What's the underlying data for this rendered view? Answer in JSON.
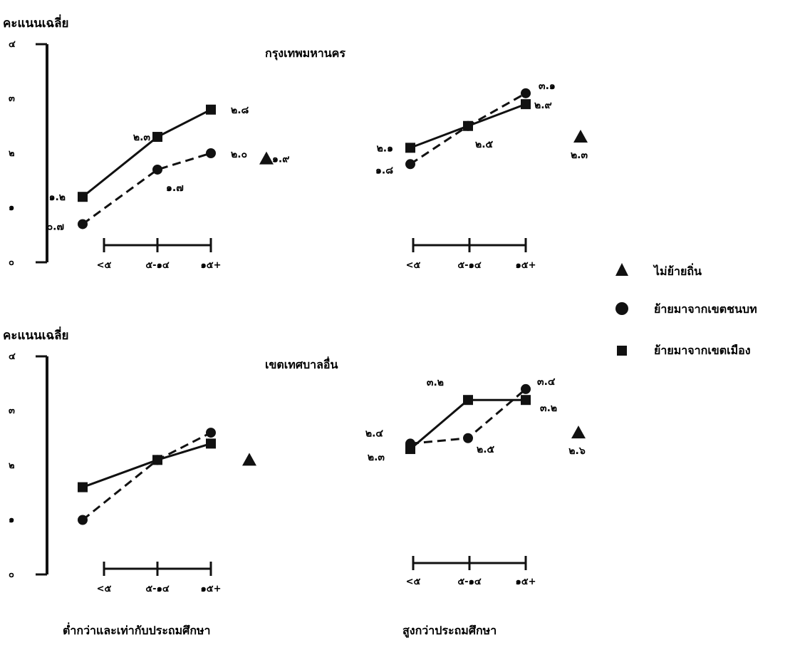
{
  "chart_data": {
    "type": "line",
    "ylabel": "คะแนนเฉลี่ย",
    "y_ticks": [
      "๐",
      "๑",
      "๒",
      "๓",
      "๔"
    ],
    "ylim": [
      0,
      4
    ],
    "categories": [
      "<๕",
      "๕-๑๔",
      "๑๕+"
    ],
    "row_titles": [
      "กรุงเทพมหานคร",
      "เขตเทศบาลอื่น"
    ],
    "column_titles": [
      "ต่ำกว่าและเท่ากับประถมศึกษา",
      "สูงกว่าประถมศึกษา"
    ],
    "legend": [
      {
        "name": "ไม่ย้ายถิ่น",
        "marker": "triangle"
      },
      {
        "name": "ย้ายมาจากเขตชนบท",
        "marker": "circle",
        "line": "dashed"
      },
      {
        "name": "ย้ายมาจากเขตเมือง",
        "marker": "square",
        "line": "solid"
      }
    ],
    "panels": [
      {
        "row": "กรุงเทพมหานคร",
        "column": "ต่ำกว่าและเท่ากับประถมศึกษา",
        "series": [
          {
            "marker": "square",
            "values": [
              1.2,
              2.3,
              2.8
            ],
            "labels": [
              "๑.๒",
              "๒.๓",
              "๒.๘"
            ]
          },
          {
            "marker": "circle",
            "values": [
              0.7,
              1.7,
              2.0
            ],
            "labels": [
              "๐.๗",
              "๑.๗",
              "๒.๐"
            ]
          }
        ],
        "nonmigrant": {
          "value": 1.9,
          "label": "๑.๙"
        }
      },
      {
        "row": "กรุงเทพมหานคร",
        "column": "สูงกว่าประถมศึกษา",
        "series": [
          {
            "marker": "square",
            "values": [
              2.1,
              2.5,
              2.9
            ],
            "labels": [
              "๒.๑",
              "",
              "๒.๙"
            ]
          },
          {
            "marker": "circle",
            "values": [
              1.8,
              2.5,
              3.1
            ],
            "labels": [
              "๑.๘",
              "๒.๕",
              "๓.๑"
            ]
          }
        ],
        "nonmigrant": {
          "value": 2.3,
          "label": "๒.๓"
        }
      },
      {
        "row": "เขตเทศบาลอื่น",
        "column": "ต่ำกว่าและเท่ากับประถมศึกษา",
        "series": [
          {
            "marker": "square",
            "values": [
              1.6,
              2.1,
              2.4
            ],
            "labels": [
              "",
              "",
              ""
            ]
          },
          {
            "marker": "circle",
            "values": [
              1.0,
              2.1,
              2.6
            ],
            "labels": [
              "",
              "",
              ""
            ]
          }
        ],
        "nonmigrant": {
          "value": 2.1,
          "label": ""
        }
      },
      {
        "row": "เขตเทศบาลอื่น",
        "column": "สูงกว่าประถมศึกษา",
        "series": [
          {
            "marker": "square",
            "values": [
              2.3,
              3.2,
              3.2
            ],
            "labels": [
              "๒.๓",
              "๓.๒",
              "๓.๒"
            ]
          },
          {
            "marker": "circle",
            "values": [
              2.4,
              2.5,
              3.4
            ],
            "labels": [
              "๒.๔",
              "๒.๕",
              "๓.๔"
            ]
          }
        ],
        "nonmigrant": {
          "value": 2.6,
          "label": "๒.๖"
        }
      }
    ]
  }
}
